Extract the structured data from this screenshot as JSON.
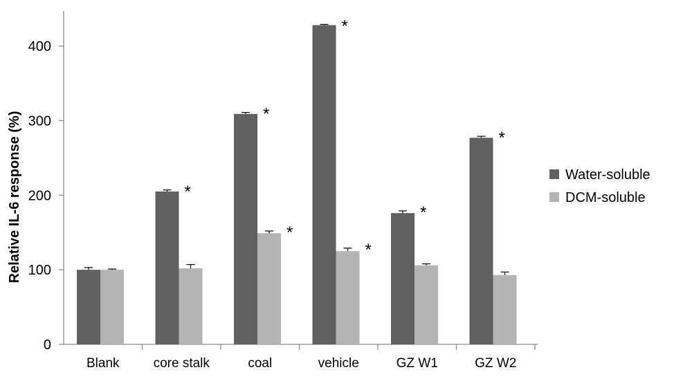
{
  "chart_data": {
    "type": "bar",
    "ylabel": "Relative IL-6 response (%)",
    "xlabel": "",
    "title": "",
    "ylim": [
      0,
      440
    ],
    "yticks": [
      0,
      100,
      200,
      300,
      400
    ],
    "categories": [
      "Blank",
      "core stalk",
      "coal",
      "vehicle",
      "GZ W1",
      "GZ W2"
    ],
    "series": [
      {
        "name": "Water-soluble",
        "color": "#606060",
        "values": [
          100,
          205,
          309,
          428,
          176,
          277
        ],
        "errors": [
          3,
          2,
          2,
          1,
          3,
          2
        ],
        "significant": [
          false,
          true,
          true,
          true,
          true,
          true
        ]
      },
      {
        "name": "DCM-soluble",
        "color": "#b4b4b4",
        "values": [
          100,
          102,
          149,
          125,
          106,
          93
        ],
        "errors": [
          1,
          5,
          3,
          4,
          2,
          4
        ],
        "significant": [
          false,
          false,
          true,
          true,
          false,
          false
        ]
      }
    ],
    "significance_marker": "*",
    "legend_position": "right",
    "grid": false
  }
}
